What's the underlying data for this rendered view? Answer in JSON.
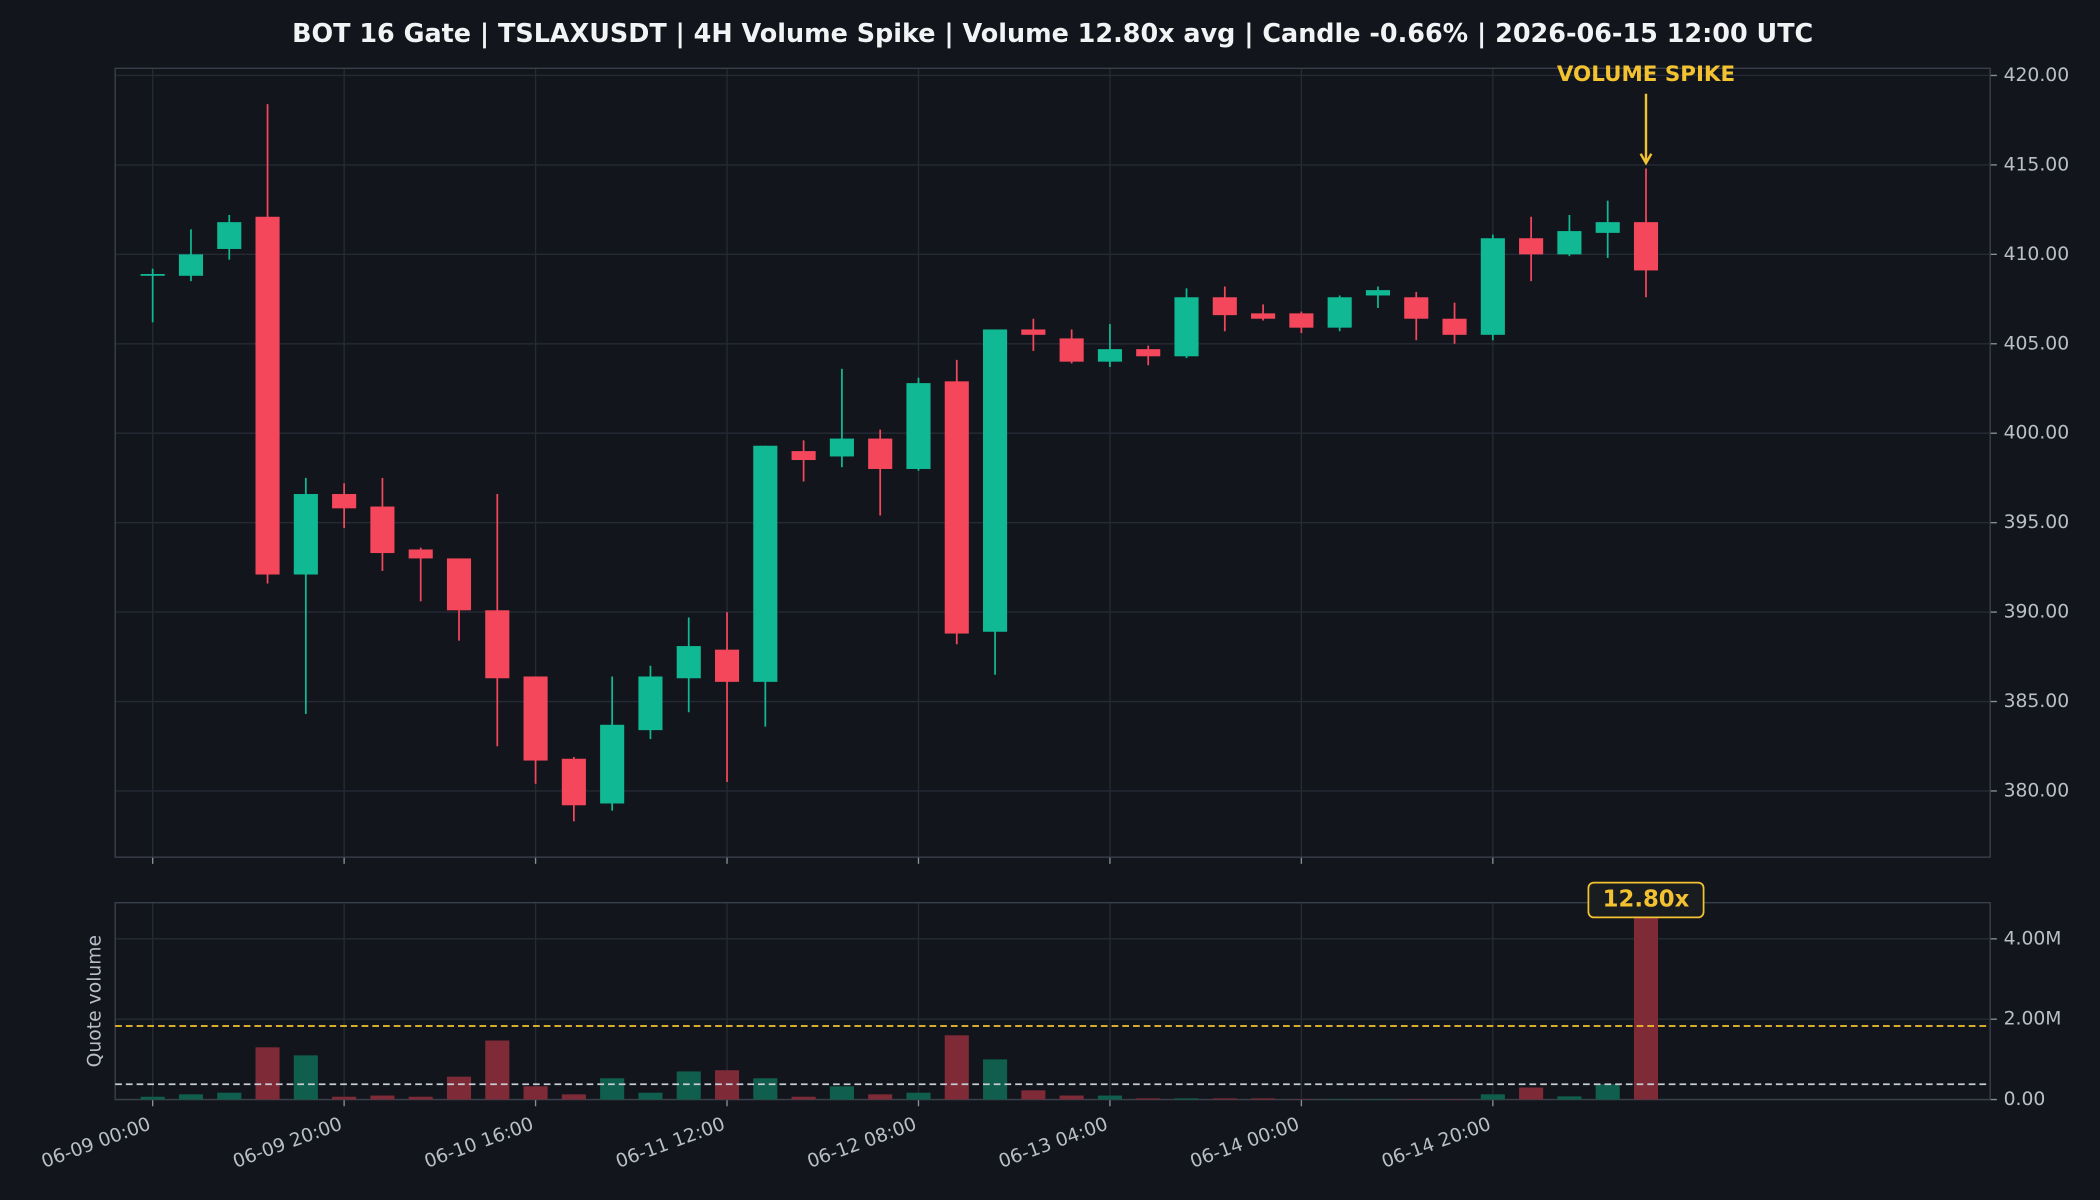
{
  "chart_data": [
    {
      "type": "candlestick",
      "title": "BOT 16 Gate | TSLAXUSDT | 4H Volume Spike | Volume 12.80x avg | Candle -0.66% | 2026-06-15 12:00 UTC",
      "open": [
        408.8,
        408.8,
        410.3,
        412.1,
        392.1,
        396.6,
        395.9,
        393.5,
        393.0,
        390.1,
        386.4,
        381.8,
        379.3,
        383.4,
        386.3,
        387.9,
        386.1,
        399.0,
        398.7,
        399.7,
        398.0,
        402.9,
        388.9,
        405.8,
        405.3,
        404.0,
        404.7,
        404.3,
        407.6,
        406.7,
        406.7,
        405.9,
        407.7,
        407.6,
        406.4,
        405.5,
        410.9,
        410.0,
        411.2,
        411.8
      ],
      "high": [
        409.2,
        411.4,
        412.2,
        418.4,
        397.5,
        397.2,
        397.5,
        393.6,
        393.0,
        396.6,
        386.4,
        381.9,
        386.4,
        387.0,
        389.7,
        390.0,
        399.3,
        399.6,
        403.6,
        400.2,
        403.1,
        404.1,
        405.8,
        406.4,
        405.8,
        406.1,
        404.9,
        408.1,
        408.2,
        407.2,
        406.8,
        407.7,
        408.2,
        407.9,
        407.3,
        411.1,
        412.1,
        412.2,
        413.0,
        414.8
      ],
      "low": [
        406.2,
        408.5,
        409.7,
        391.6,
        384.3,
        394.7,
        392.3,
        390.6,
        388.4,
        382.5,
        380.4,
        378.3,
        378.9,
        382.9,
        384.4,
        380.5,
        383.6,
        397.3,
        398.1,
        395.4,
        397.9,
        388.2,
        386.5,
        404.6,
        403.9,
        403.7,
        403.8,
        404.2,
        405.7,
        406.3,
        405.6,
        405.7,
        407.0,
        405.2,
        405.0,
        405.2,
        408.5,
        409.9,
        409.8,
        407.6
      ],
      "close": [
        408.9,
        410.0,
        411.8,
        392.1,
        396.6,
        395.8,
        393.3,
        393.0,
        390.1,
        386.3,
        381.7,
        379.2,
        383.7,
        386.4,
        388.1,
        386.1,
        399.3,
        398.5,
        399.7,
        398.0,
        402.8,
        388.8,
        405.8,
        405.5,
        404.0,
        404.7,
        404.3,
        407.6,
        406.6,
        406.4,
        405.9,
        407.6,
        408.0,
        406.4,
        405.5,
        410.9,
        410.0,
        411.3,
        411.8,
        409.1
      ],
      "up_color": "#10b994",
      "down_color": "#f4475b",
      "ylim": [
        376.3,
        420.4
      ],
      "yticks": [
        {
          "value": 380,
          "label": "380.00"
        },
        {
          "value": 385,
          "label": "385.00"
        },
        {
          "value": 390,
          "label": "390.00"
        },
        {
          "value": 395,
          "label": "395.00"
        },
        {
          "value": 400,
          "label": "400.00"
        },
        {
          "value": 405,
          "label": "405.00"
        },
        {
          "value": 410,
          "label": "410.00"
        },
        {
          "value": 415,
          "label": "415.00"
        },
        {
          "value": 420,
          "label": "420.00"
        }
      ],
      "grid": true,
      "annotation": {
        "text": "VOLUME SPIKE",
        "color": "#f2c230"
      }
    },
    {
      "type": "bar",
      "ylabel": "Quote volume",
      "categories": [
        "06-09 00:00",
        null,
        null,
        null,
        null,
        "06-09 20:00",
        null,
        null,
        null,
        null,
        "06-10 16:00",
        null,
        null,
        null,
        null,
        "06-11 12:00",
        null,
        null,
        null,
        null,
        "06-12 08:00",
        null,
        null,
        null,
        null,
        "06-13 04:00",
        null,
        null,
        null,
        null,
        "06-14 00:00",
        null,
        null,
        null,
        null,
        "06-14 20:00",
        null,
        null,
        null,
        null
      ],
      "values": [
        70000,
        130000,
        170000,
        1300000,
        1100000,
        70000,
        100000,
        70000,
        570000,
        1470000,
        330000,
        130000,
        530000,
        170000,
        700000,
        730000,
        530000,
        70000,
        330000,
        130000,
        170000,
        1600000,
        1000000,
        230000,
        100000,
        100000,
        30000,
        30000,
        30000,
        30000,
        10000,
        10000,
        10000,
        10000,
        10000,
        130000,
        300000,
        80000,
        380000,
        4860000
      ],
      "up_color": "#0f5e4e",
      "down_color": "#7e2a37",
      "ylim": [
        0,
        4900000
      ],
      "yticks": [
        {
          "value": 0,
          "label": "0.00"
        },
        {
          "value": 2000000,
          "label": "2.00M"
        },
        {
          "value": 4000000,
          "label": "4.00M"
        }
      ],
      "grid": true,
      "reference_lines": [
        {
          "value": 380000,
          "color": "#c8ccd4"
        },
        {
          "value": 1830000,
          "color": "#f2c230"
        }
      ],
      "annotation": {
        "text": "12.80x",
        "color": "#f2c230"
      }
    }
  ]
}
